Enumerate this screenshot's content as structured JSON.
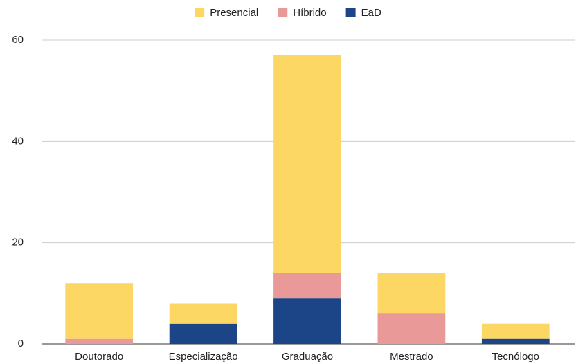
{
  "chart_data": {
    "type": "stacked_bar",
    "categories": [
      "Doutorado",
      "Especialização",
      "Graduação",
      "Mestrado",
      "Tecnólogo"
    ],
    "series": [
      {
        "name": "Presencial",
        "color": "#fdd764",
        "values": [
          11,
          4,
          43,
          8,
          3
        ]
      },
      {
        "name": "Híbrido",
        "color": "#ea9999",
        "values": [
          1,
          0,
          5,
          6,
          0
        ]
      },
      {
        "name": "EaD",
        "color": "#1c4587",
        "values": [
          0,
          4,
          9,
          0,
          1
        ]
      }
    ],
    "ylim": [
      0,
      60
    ],
    "yticks": [
      0,
      20,
      40,
      60
    ],
    "grid": true,
    "legend": "top"
  }
}
